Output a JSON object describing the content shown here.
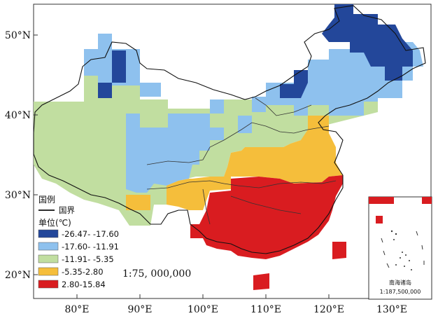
{
  "map": {
    "lon_ticks": [
      "80°E",
      "90°E",
      "100°E",
      "110°E",
      "120°E",
      "130°E"
    ],
    "lat_ticks": [
      "50°N",
      "40°N",
      "30°N",
      "20°N"
    ],
    "scale": "1:75, 000,000"
  },
  "legend": {
    "title": "国例",
    "border_label": "国界",
    "unit_label": "单位(℃)",
    "classes": [
      {
        "range": "-26.47- -17.60",
        "color": "#23479a"
      },
      {
        "range": "-17.60- -11.91",
        "color": "#8ec1ee"
      },
      {
        "range": "-11.91- -5.35",
        "color": "#c1dea0"
      },
      {
        "range": "-5.35-2.80",
        "color": "#f5be3b"
      },
      {
        "range": "2.80-15.84",
        "color": "#d91c20"
      }
    ]
  },
  "inset": {
    "title": "南海诸岛",
    "scale": "1:187,500,000"
  }
}
